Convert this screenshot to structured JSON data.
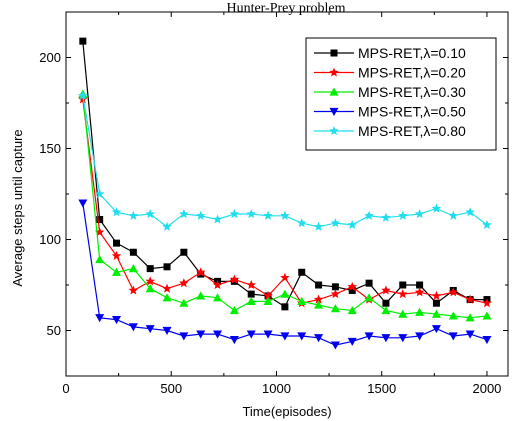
{
  "chart_data": {
    "type": "line",
    "title": "Hunter-Prey problem",
    "xlabel": "Time(episodes)",
    "ylabel": "Average steps until capture",
    "xlim": [
      0,
      2100
    ],
    "ylim": [
      25,
      225
    ],
    "xticks": [
      0,
      500,
      1000,
      1500,
      2000
    ],
    "yticks": [
      50,
      100,
      150,
      200
    ],
    "grid": false,
    "legend_position": "top-right",
    "x": [
      80,
      160,
      240,
      320,
      400,
      480,
      560,
      640,
      720,
      800,
      880,
      960,
      1040,
      1120,
      1200,
      1280,
      1360,
      1440,
      1520,
      1600,
      1680,
      1760,
      1840,
      1920,
      2000
    ],
    "series": [
      {
        "name": "MPS-RET,λ=0.10",
        "color": "#000000",
        "marker": "square",
        "values": [
          209,
          111,
          98,
          93,
          84,
          85,
          93,
          81,
          77,
          77,
          70,
          69,
          63,
          82,
          75,
          74,
          72,
          76,
          65,
          75,
          75,
          65,
          72,
          67,
          67
        ]
      },
      {
        "name": "MPS-RET,λ=0.20",
        "color": "#ff0000",
        "marker": "star",
        "values": [
          177,
          104,
          91,
          72,
          77,
          73,
          76,
          82,
          75,
          78,
          75,
          69,
          79,
          65,
          67,
          70,
          74,
          67,
          72,
          70,
          71,
          69,
          71,
          67,
          65
        ]
      },
      {
        "name": "MPS-RET,λ=0.30",
        "color": "#00ee00",
        "marker": "triangle-up",
        "values": [
          180,
          89,
          82,
          84,
          73,
          68,
          65,
          69,
          68,
          61,
          66,
          66,
          70,
          66,
          64,
          62,
          61,
          68,
          61,
          59,
          60,
          59,
          58,
          57,
          58
        ]
      },
      {
        "name": "MPS-RET,λ=0.50",
        "color": "#0000ee",
        "marker": "triangle-down",
        "values": [
          120,
          57,
          56,
          52,
          51,
          50,
          47,
          48,
          48,
          45,
          48,
          48,
          47,
          47,
          46,
          42,
          44,
          47,
          46,
          46,
          47,
          51,
          47,
          48,
          45
        ]
      },
      {
        "name": "MPS-RET,λ=0.80",
        "color": "#22ddee",
        "marker": "star",
        "values": [
          179,
          125,
          115,
          113,
          114,
          107,
          114,
          113,
          111,
          114,
          114,
          113,
          113,
          109,
          107,
          109,
          108,
          113,
          112,
          113,
          114,
          117,
          113,
          115,
          108
        ]
      }
    ]
  }
}
